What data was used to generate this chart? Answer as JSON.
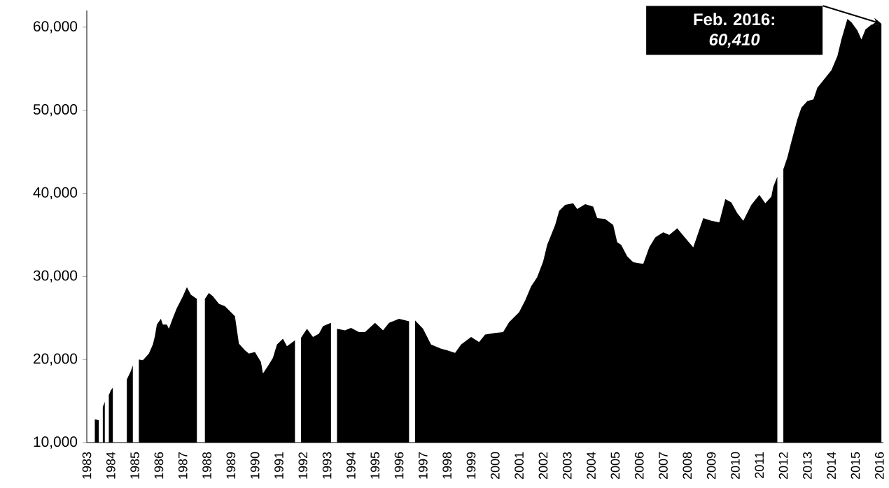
{
  "chart_data": {
    "type": "area",
    "color": "#000000",
    "x": [
      "1983-05",
      "1983-07",
      "1983-08",
      "1983-09",
      "1983-10",
      "1983-11",
      "1983-12",
      "1984-01",
      "1984-02",
      "1984-05",
      "1984-09",
      "1984-11",
      "1984-12",
      "1985-01",
      "1985-03",
      "1985-05",
      "1985-08",
      "1985-10",
      "1985-11",
      "1985-12",
      "1986-02",
      "1986-03",
      "1986-05",
      "1986-06",
      "1986-08",
      "1986-10",
      "1987-01",
      "1987-03",
      "1987-05",
      "1987-08",
      "1987-10",
      "1987-12",
      "1988-02",
      "1988-04",
      "1988-07",
      "1988-10",
      "1989-01",
      "1989-03",
      "1989-05",
      "1989-08",
      "1989-10",
      "1990-01",
      "1990-04",
      "1990-05",
      "1990-08",
      "1990-10",
      "1990-12",
      "1991-03",
      "1991-05",
      "1991-09",
      "1991-10",
      "1991-12",
      "1992-03",
      "1992-06",
      "1992-09",
      "1992-11",
      "1993-03",
      "1993-05",
      "1993-06",
      "1993-10",
      "1994-01",
      "1994-05",
      "1994-08",
      "1995-01",
      "1995-05",
      "1995-08",
      "1996-01",
      "1996-06",
      "1996-08",
      "1996-09",
      "1997-01",
      "1997-05",
      "1997-10",
      "1998-01",
      "1998-05",
      "1998-08",
      "1999-01",
      "1999-05",
      "1999-08",
      "2000-01",
      "2000-05",
      "2000-08",
      "2001-01",
      "2001-04",
      "2001-07",
      "2001-10",
      "2002-01",
      "2002-03",
      "2002-05",
      "2002-07",
      "2002-09",
      "2002-12",
      "2003-04",
      "2003-06",
      "2003-10",
      "2004-02",
      "2004-04",
      "2004-08",
      "2004-12",
      "2005-02",
      "2005-04",
      "2005-07",
      "2005-10",
      "2006-03",
      "2006-06",
      "2006-09",
      "2007-01",
      "2007-04",
      "2007-08",
      "2007-11",
      "2008-04",
      "2008-06",
      "2008-09",
      "2009-01",
      "2009-05",
      "2009-08",
      "2009-11",
      "2010-02",
      "2010-05",
      "2010-09",
      "2011-01",
      "2011-04",
      "2011-07",
      "2011-08",
      "2011-10",
      "2011-12",
      "2012-01",
      "2012-03",
      "2012-05",
      "2012-08",
      "2012-10",
      "2013-01",
      "2013-04",
      "2013-06",
      "2013-09",
      "2014-01",
      "2014-04",
      "2014-06",
      "2014-09",
      "2014-11",
      "2015-02",
      "2015-04",
      "2015-06",
      "2015-09",
      "2016-01",
      "2016-02"
    ],
    "values": [
      12800,
      12700,
      null,
      14300,
      14900,
      null,
      15700,
      16300,
      16600,
      null,
      17600,
      18600,
      19300,
      null,
      20000,
      19900,
      20700,
      21800,
      22800,
      24200,
      24900,
      24200,
      24200,
      23700,
      25000,
      26200,
      27600,
      28700,
      27800,
      27300,
      null,
      27300,
      28000,
      27600,
      26700,
      26400,
      25700,
      25200,
      21900,
      21100,
      20700,
      20900,
      19700,
      18300,
      19400,
      20200,
      21800,
      22500,
      21600,
      22300,
      null,
      22600,
      23700,
      22700,
      23100,
      24000,
      24400,
      null,
      23700,
      23500,
      23800,
      23300,
      23300,
      24400,
      23500,
      24400,
      24900,
      24600,
      null,
      24700,
      23700,
      21800,
      21300,
      21100,
      20800,
      21800,
      22700,
      22100,
      23000,
      23200,
      23300,
      24500,
      25700,
      27100,
      28800,
      29900,
      31800,
      33800,
      35000,
      36200,
      37900,
      38600,
      38800,
      38100,
      38700,
      38400,
      37000,
      36900,
      36200,
      34100,
      33800,
      32400,
      31700,
      31500,
      33500,
      34700,
      35300,
      35000,
      35800,
      34900,
      33500,
      34900,
      37000,
      36700,
      36500,
      39300,
      38900,
      37600,
      36700,
      38600,
      39800,
      38800,
      39600,
      40800,
      42000,
      null,
      42900,
      44300,
      46200,
      48900,
      50300,
      51100,
      51300,
      52700,
      53600,
      54800,
      56500,
      58500,
      61000,
      60600,
      59600,
      58500,
      59700,
      60300,
      60400,
      60410
    ],
    "xlim": [
      "1983-01",
      "2016-03"
    ],
    "ylim": [
      10000,
      62000
    ],
    "xticks": [
      "1983",
      "1984",
      "1985",
      "1986",
      "1987",
      "1988",
      "1989",
      "1990",
      "1991",
      "1992",
      "1993",
      "1994",
      "1995",
      "1996",
      "1997",
      "1998",
      "1999",
      "2000",
      "2001",
      "2002",
      "2003",
      "2004",
      "2005",
      "2006",
      "2007",
      "2008",
      "2009",
      "2010",
      "2011",
      "2012",
      "2013",
      "2014",
      "2015",
      "2016"
    ],
    "yticks": [
      {
        "value": 10000,
        "label": "10,000"
      },
      {
        "value": 20000,
        "label": "20,000"
      },
      {
        "value": 30000,
        "label": "30,000"
      },
      {
        "value": 40000,
        "label": "40,000"
      },
      {
        "value": 50000,
        "label": "50,000"
      },
      {
        "value": 60000,
        "label": "60,000"
      }
    ],
    "annotations": [
      "Feb. 2016: *60,410*"
    ]
  }
}
